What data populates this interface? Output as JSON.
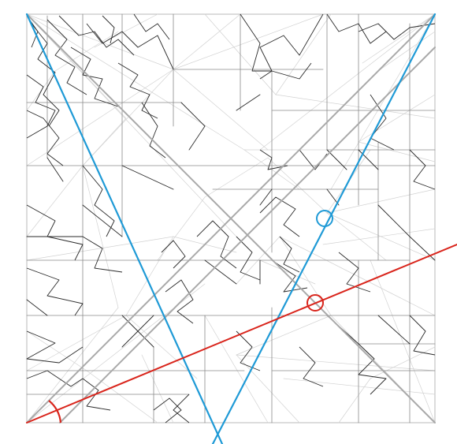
{
  "colors": {
    "background": "#ffffff",
    "square_border": "#b8b8b8",
    "crease_dark": "#2a2a2a",
    "crease_medium": "#8a8a8a",
    "crease_light": "#d2d2d2",
    "guide_gray": "#a9a9a9",
    "guide_blue": "#1f9ad6",
    "guide_red": "#d9251c"
  },
  "overlay": {
    "guide_lines": [
      {
        "name": "gray-diagonal-line",
        "color_key": "guide_gray"
      },
      {
        "name": "gray-antidiagonal-line",
        "color_key": "guide_gray"
      },
      {
        "name": "gray-secondary-line",
        "color_key": "guide_gray"
      },
      {
        "name": "blue-guide-line",
        "color_key": "guide_blue"
      },
      {
        "name": "blue-guide-line",
        "color_key": "guide_blue"
      },
      {
        "name": "red-guide-line",
        "color_key": "guide_red"
      }
    ],
    "markers": [
      {
        "name": "blue-circle-marker",
        "color_key": "guide_blue"
      },
      {
        "name": "red-circle-marker",
        "color_key": "guide_red"
      },
      {
        "name": "red-angle-arc",
        "color_key": "guide_red"
      }
    ]
  }
}
